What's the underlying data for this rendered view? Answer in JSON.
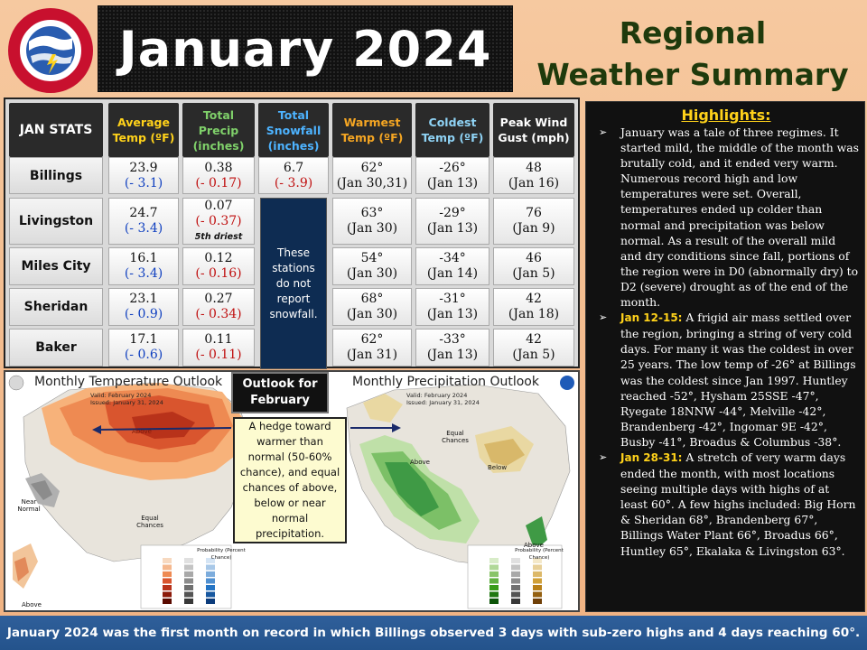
{
  "header": {
    "title": "January 2024",
    "subtitle_line1": "Regional",
    "subtitle_line2": "Weather Summary",
    "logo_text": "NATIONAL WEATHER SERVICE"
  },
  "stats": {
    "corner_label": "JAN STATS",
    "columns": [
      {
        "label": "Average Temp (ºF)",
        "color": "#ffd21a"
      },
      {
        "label": "Total Precip (inches)",
        "color": "#7fd06a"
      },
      {
        "label": "Total Snowfall (inches)",
        "color": "#4db3ff"
      },
      {
        "label": "Warmest Temp (ºF)",
        "color": "#f5a623"
      },
      {
        "label": "Coldest Temp (ºF)",
        "color": "#8fd3f5"
      },
      {
        "label": "Peak Wind Gust (mph)",
        "color": "#ffffff"
      }
    ],
    "rows": [
      {
        "station": "Billings",
        "avg": "23.9",
        "avg_dep": "(- 3.1)",
        "precip": "0.38",
        "precip_dep": "(- 0.17)",
        "precip_note": "",
        "snow": "6.7",
        "snow_dep": "(- 3.9)",
        "warm": "62°",
        "warm_date": "(Jan 30,31)",
        "cold": "-26°",
        "cold_date": "(Jan 13)",
        "gust": "48",
        "gust_date": "(Jan 16)"
      },
      {
        "station": "Livingston",
        "avg": "24.7",
        "avg_dep": "(- 3.4)",
        "precip": "0.07",
        "precip_dep": "(- 0.37)",
        "precip_note": "5th driest",
        "warm": "63°",
        "warm_date": "(Jan 30)",
        "cold": "-29°",
        "cold_date": "(Jan 13)",
        "gust": "76",
        "gust_date": "(Jan 9)"
      },
      {
        "station": "Miles City",
        "avg": "16.1",
        "avg_dep": "(- 3.4)",
        "precip": "0.12",
        "precip_dep": "(- 0.16)",
        "precip_note": "",
        "warm": "54°",
        "warm_date": "(Jan 30)",
        "cold": "-34°",
        "cold_date": "(Jan 14)",
        "gust": "46",
        "gust_date": "(Jan 5)"
      },
      {
        "station": "Sheridan",
        "avg": "23.1",
        "avg_dep": "(- 0.9)",
        "precip": "0.27",
        "precip_dep": "(- 0.34)",
        "precip_note": "",
        "warm": "68°",
        "warm_date": "(Jan 30)",
        "cold": "-31°",
        "cold_date": "(Jan 13)",
        "gust": "42",
        "gust_date": "(Jan 18)"
      },
      {
        "station": "Baker",
        "avg": "17.1",
        "avg_dep": "(- 0.6)",
        "precip": "0.11",
        "precip_dep": "(- 0.11)",
        "precip_note": "",
        "warm": "62°",
        "warm_date": "(Jan 31)",
        "cold": "-33°",
        "cold_date": "(Jan 13)",
        "gust": "42",
        "gust_date": "(Jan 5)"
      }
    ],
    "snow_note": "These stations do not report snowfall."
  },
  "outlook": {
    "header": "Outlook for February",
    "note": "A hedge toward warmer than normal (50-60% chance), and equal chances of above, below or near normal precipitation.",
    "temp_map": {
      "title": "Monthly Temperature Outlook",
      "valid": "Valid: February 2024",
      "issued": "Issued: January 31, 2024",
      "label_above": "Above",
      "label_near": "Near Normal",
      "label_equal": "Equal Chances",
      "label_above2": "Above"
    },
    "precip_map": {
      "title": "Monthly Precipitation Outlook",
      "valid": "Valid: February 2024",
      "issued": "Issued: January 31, 2024",
      "label_equal": "Equal Chances",
      "label_above": "Above",
      "label_below": "Below",
      "label_above2": "Above"
    },
    "legend_title": "Probability (Percent Chance)",
    "legend_cols": [
      "Above Normal",
      "Near Normal",
      "Below Normal"
    ],
    "legend_side_left": [
      "Leaning Above",
      "Likely Above"
    ],
    "legend_side_right": [
      "Leaning Below",
      "Likely Below"
    ],
    "legend_equal": "Equal Chances",
    "legend_bins": [
      "33-40%",
      "40-50%",
      "50-60%",
      "60-70%",
      "70-80%",
      "80-90%",
      "90-100%"
    ]
  },
  "highlights": {
    "title": "Highlights",
    "items": [
      {
        "lead": "",
        "text": "January was a tale of three regimes. It started mild, the middle of the month was brutally cold, and it ended very warm. Numerous record high and low temperatures were set. Overall, temperatures ended up colder than normal and precipitation was below normal. As a result of the overall mild and dry conditions since fall, portions of the region were in D0 (abnormally dry) to D2 (severe) drought as of the end of the month."
      },
      {
        "lead": "Jan 12-15:",
        "text": " A frigid air mass settled over the region, bringing a string of very cold days. For many it was the coldest in over 25 years. The low temp of -26° at Billings was the coldest since Jan 1997. Huntley reached -52°, Hysham 25SSE -47°, Ryegate 18NNW -44°, Melville -42°, Brandenberg -42°, Ingomar 9E -42°, Busby -41°, Broadus & Columbus -38°."
      },
      {
        "lead": "Jan 28-31:",
        "text": " A stretch of very warm days ended the month, with most locations seeing multiple days with highs of at least 60°. A few highs included: Big Horn & Sheridan 68°, Brandenberg 67°, Billings Water Plant 66°, Broadus 66°, Huntley 65°, Ekalaka & Livingston 63°."
      }
    ]
  },
  "footer": {
    "text": "January 2024 was the first month on record in which Billings observed 3 days with sub-zero highs and 4 days reaching 60°."
  }
}
